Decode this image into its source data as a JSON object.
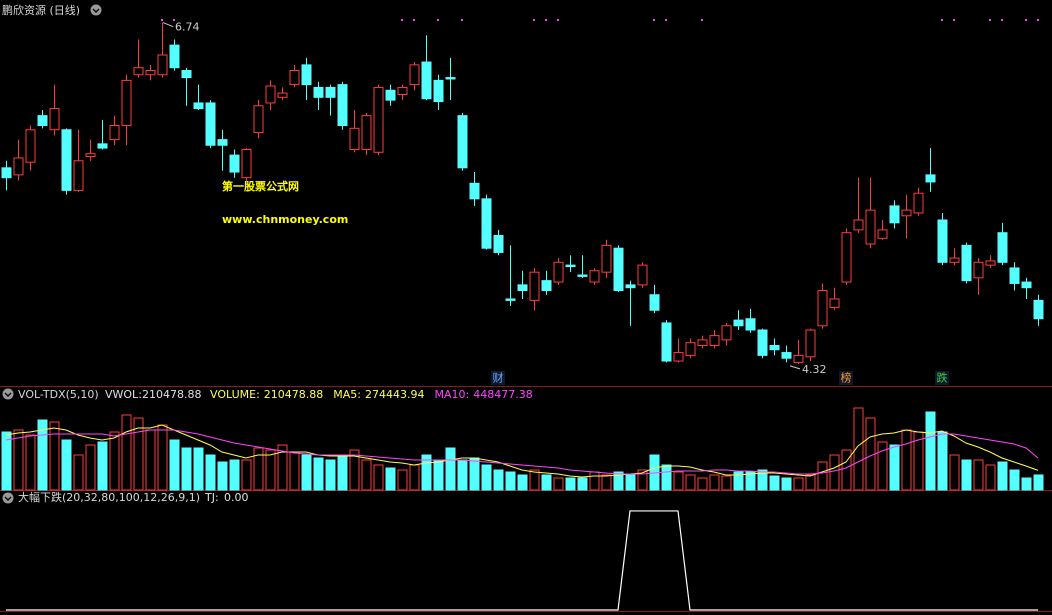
{
  "chart_data": [
    {
      "type": "candlestick",
      "title": "鹏欣资源 (日线)",
      "open": [
        5.71,
        5.66,
        5.75,
        6.08,
        5.98,
        5.98,
        5.55,
        5.79,
        5.88,
        5.91,
        6.01,
        6.37,
        6.37,
        6.37,
        6.58,
        6.4,
        6.17,
        6.17,
        5.91,
        5.8,
        5.64,
        5.96,
        6.17,
        6.21,
        6.3,
        6.44,
        6.28,
        6.28,
        6.3,
        5.84,
        5.84,
        5.82,
        6.26,
        6.23,
        6.3,
        6.46,
        6.33,
        6.35,
        6.08,
        5.6,
        5.49,
        5.23,
        4.78,
        4.88,
        4.77,
        4.91,
        4.9,
        5.02,
        4.95,
        4.9,
        4.97,
        5.14,
        4.88,
        4.88,
        4.81,
        4.61,
        4.34,
        4.38,
        4.45,
        4.45,
        4.49,
        4.63,
        4.64,
        4.56,
        4.45,
        4.4,
        4.33,
        4.37,
        4.59,
        4.72,
        4.9,
        5.27,
        5.17,
        5.21,
        5.44,
        5.37,
        5.39,
        5.66,
        5.34,
        5.04,
        5.16,
        4.93,
        5.02,
        5.25,
        5.0,
        4.9,
        4.77
      ],
      "high": [
        5.76,
        5.91,
        6.01,
        6.12,
        6.3,
        5.99,
        5.98,
        5.91,
        6.05,
        6.08,
        6.37,
        6.62,
        6.44,
        6.74,
        6.62,
        6.42,
        6.3,
        6.19,
        5.98,
        5.84,
        5.85,
        6.19,
        6.33,
        6.28,
        6.44,
        6.49,
        6.32,
        6.3,
        6.32,
        6.12,
        6.1,
        6.3,
        6.3,
        6.3,
        6.46,
        6.65,
        6.37,
        6.49,
        6.1,
        5.68,
        5.52,
        5.27,
        5.16,
        4.98,
        5.0,
        4.98,
        5.07,
        5.09,
        5.09,
        5.0,
        5.2,
        5.16,
        4.91,
        5.04,
        4.88,
        4.63,
        4.5,
        4.5,
        4.52,
        4.56,
        4.61,
        4.7,
        4.71,
        4.57,
        4.5,
        4.45,
        4.49,
        4.57,
        4.89,
        4.86,
        5.28,
        5.64,
        5.64,
        5.34,
        5.48,
        5.52,
        5.57,
        5.85,
        5.39,
        5.14,
        5.18,
        5.07,
        5.09,
        5.32,
        5.04,
        4.93,
        4.81
      ],
      "low": [
        5.55,
        5.62,
        5.69,
        5.99,
        5.94,
        5.52,
        5.54,
        5.76,
        5.84,
        5.87,
        5.87,
        6.35,
        6.33,
        6.35,
        6.4,
        6.15,
        6.12,
        5.85,
        5.69,
        5.64,
        5.61,
        5.92,
        6.12,
        6.19,
        6.28,
        6.19,
        6.12,
        6.08,
        5.98,
        5.82,
        5.8,
        5.8,
        6.15,
        6.19,
        6.26,
        6.19,
        6.12,
        6.19,
        5.69,
        5.44,
        5.13,
        5.09,
        4.73,
        4.78,
        4.7,
        4.81,
        4.88,
        4.97,
        4.93,
        4.88,
        4.93,
        4.83,
        4.59,
        4.86,
        4.68,
        4.33,
        4.33,
        4.36,
        4.43,
        4.43,
        4.45,
        4.56,
        4.54,
        4.36,
        4.38,
        4.33,
        4.32,
        4.34,
        4.57,
        4.7,
        4.88,
        5.25,
        5.14,
        5.2,
        5.28,
        5.21,
        5.37,
        5.54,
        5.02,
        5.02,
        4.89,
        4.81,
        5.0,
        5.02,
        4.84,
        4.78,
        4.59
      ],
      "close": [
        5.64,
        5.78,
        5.98,
        6.01,
        6.13,
        5.55,
        5.76,
        5.81,
        5.85,
        6.01,
        6.33,
        6.42,
        6.4,
        6.51,
        6.42,
        6.35,
        6.13,
        5.87,
        5.87,
        5.68,
        5.84,
        6.15,
        6.29,
        6.24,
        6.4,
        6.3,
        6.21,
        6.21,
        6.01,
        5.99,
        6.08,
        6.28,
        6.19,
        6.28,
        6.44,
        6.2,
        6.18,
        6.34,
        5.71,
        5.49,
        5.14,
        5.11,
        4.77,
        4.84,
        4.97,
        4.84,
        5.04,
        5.01,
        4.94,
        4.98,
        5.16,
        4.84,
        4.86,
        5.02,
        4.7,
        4.34,
        4.4,
        4.47,
        4.49,
        4.52,
        4.59,
        4.59,
        4.56,
        4.38,
        4.42,
        4.36,
        4.38,
        4.56,
        4.84,
        4.78,
        5.25,
        5.34,
        5.41,
        5.27,
        5.32,
        5.41,
        5.53,
        5.61,
        5.04,
        5.07,
        4.91,
        5.04,
        5.05,
        5.04,
        4.89,
        4.86,
        4.64
      ],
      "ylim": [
        4.17,
        6.9
      ],
      "up_color": "#ff3c3c",
      "down_color": "#54ffff",
      "signal_color": "#ff44ff",
      "signals": [
        13,
        14,
        33,
        34,
        36,
        38,
        44,
        45,
        46,
        54,
        55,
        58,
        78,
        79,
        82,
        83,
        85,
        86
      ],
      "events": [
        {
          "index": 41,
          "label": "财",
          "color": "#6aa8ff"
        },
        {
          "index": 70,
          "label": "榜",
          "color": "#ff9a2a"
        },
        {
          "index": 78,
          "label": "跌",
          "color": "#3cd23c"
        }
      ],
      "watermark": [
        "第一股票公式网",
        "www.chnmoney.com"
      ]
    },
    {
      "type": "bar",
      "title": "VOL-TDX(5,10)",
      "vwol_label": "VWOL:",
      "ylim": [
        0,
        1218000
      ],
      "series": [
        {
          "name": "VOLUME:",
          "color": "#ffff54",
          "values": [
            812000,
            840000,
            770000,
            980000,
            952000,
            700000,
            490000,
            630000,
            672000,
            812000,
            1050000,
            1008000,
            840000,
            910000,
            700000,
            588000,
            588000,
            490000,
            392000,
            420000,
            420000,
            588000,
            560000,
            630000,
            532000,
            490000,
            448000,
            420000,
            490000,
            560000,
            420000,
            350000,
            308000,
            280000,
            350000,
            490000,
            420000,
            588000,
            420000,
            448000,
            350000,
            280000,
            252000,
            210000,
            280000,
            210000,
            168000,
            168000,
            168000,
            252000,
            210000,
            252000,
            210000,
            280000,
            490000,
            350000,
            252000,
            210000,
            168000,
            210000,
            196000,
            252000,
            252000,
            280000,
            196000,
            168000,
            168000,
            210000,
            392000,
            490000,
            560000,
            1148000,
            1008000,
            672000,
            630000,
            840000,
            812000,
            1092000,
            812000,
            490000,
            420000,
            420000,
            350000,
            392000,
            280000,
            168000,
            210478.88
          ]
        },
        {
          "name": "MA5:",
          "color": "#ffff54",
          "values": [
            770000,
            798000,
            812000,
            840000,
            868000,
            840000,
            770000,
            728000,
            700000,
            728000,
            812000,
            868000,
            868000,
            910000,
            840000,
            770000,
            700000,
            630000,
            532000,
            490000,
            448000,
            490000,
            490000,
            532000,
            532000,
            532000,
            490000,
            476000,
            476000,
            476000,
            448000,
            420000,
            392000,
            378000,
            350000,
            378000,
            392000,
            420000,
            448000,
            448000,
            420000,
            392000,
            336000,
            280000,
            252000,
            238000,
            224000,
            196000,
            182000,
            196000,
            196000,
            210000,
            224000,
            238000,
            308000,
            336000,
            336000,
            322000,
            280000,
            252000,
            210000,
            210000,
            224000,
            238000,
            238000,
            224000,
            210000,
            196000,
            252000,
            308000,
            392000,
            616000,
            742000,
            784000,
            798000,
            840000,
            812000,
            798000,
            826000,
            756000,
            658000,
            602000,
            532000,
            448000,
            392000,
            336000,
            274443.94
          ]
        },
        {
          "name": "MA10:",
          "color": "#ff44ff",
          "values": [
            700000,
            728000,
            756000,
            770000,
            784000,
            784000,
            784000,
            784000,
            784000,
            756000,
            784000,
            812000,
            840000,
            840000,
            840000,
            812000,
            784000,
            742000,
            700000,
            658000,
            630000,
            602000,
            574000,
            546000,
            518000,
            504000,
            490000,
            490000,
            490000,
            490000,
            476000,
            462000,
            448000,
            434000,
            420000,
            420000,
            420000,
            420000,
            420000,
            406000,
            392000,
            378000,
            364000,
            350000,
            336000,
            322000,
            308000,
            280000,
            266000,
            252000,
            238000,
            224000,
            224000,
            224000,
            238000,
            252000,
            266000,
            266000,
            266000,
            280000,
            280000,
            266000,
            266000,
            252000,
            252000,
            238000,
            224000,
            224000,
            238000,
            266000,
            308000,
            392000,
            476000,
            546000,
            602000,
            644000,
            700000,
            742000,
            784000,
            784000,
            756000,
            728000,
            700000,
            672000,
            644000,
            588000,
            448477.38
          ]
        }
      ]
    },
    {
      "type": "line",
      "title": "大幅下跌(20,32,80,100,12,26,9,1)",
      "ylim": [
        0,
        1.05
      ],
      "series": [
        {
          "name": "TJ:",
          "color": "#ffffff",
          "readout": {
            "value": 0,
            "label": "0.00"
          },
          "values": [
            0,
            0,
            0,
            0,
            0,
            0,
            0,
            0,
            0,
            0,
            0,
            0,
            0,
            0,
            0,
            0,
            0,
            0,
            0,
            0,
            0,
            0,
            0,
            0,
            0,
            0,
            0,
            0,
            0,
            0,
            0,
            0,
            0,
            0,
            0,
            0,
            0,
            0,
            0,
            0,
            0,
            0,
            0,
            0,
            0,
            0,
            0,
            0,
            0,
            0,
            0,
            0,
            1,
            1,
            1,
            1,
            1,
            0,
            0,
            0,
            0,
            0,
            0,
            0,
            0,
            0,
            0,
            0,
            0,
            0,
            0,
            0,
            0,
            0,
            0,
            0,
            0,
            0,
            0,
            0,
            0,
            0,
            0,
            0,
            0,
            0,
            0
          ]
        }
      ]
    }
  ]
}
